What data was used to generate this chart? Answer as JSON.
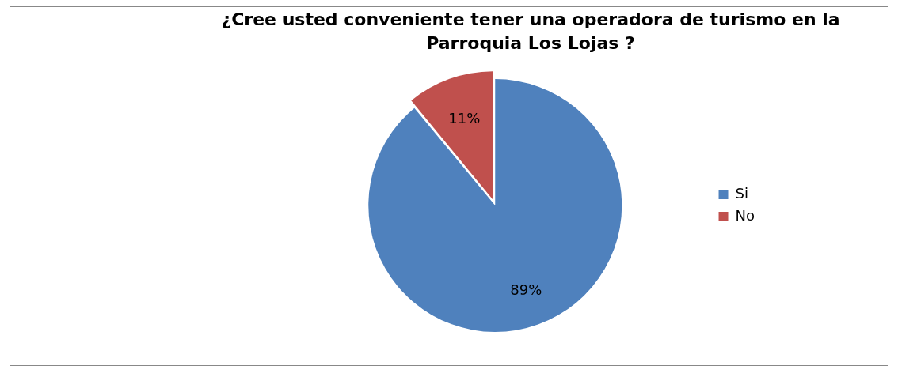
{
  "chart_data": {
    "type": "pie",
    "title": "¿Cree usted conveniente tener una operadora de turismo en la Parroquia Los Lojas ?",
    "categories": [
      "Si",
      "No"
    ],
    "values": [
      89,
      11
    ],
    "colors": [
      "#4f81bd",
      "#c0504d"
    ],
    "value_labels": [
      "89%",
      "11%"
    ],
    "legend": "right"
  }
}
